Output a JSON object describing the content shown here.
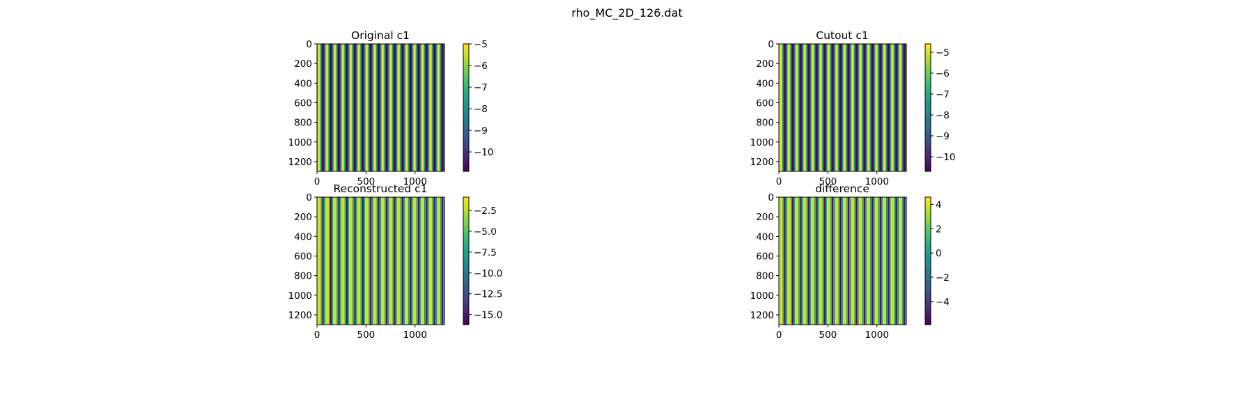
{
  "figure": {
    "suptitle": "rho_MC_2D_126.dat"
  },
  "colormap": [
    "#440154",
    "#482475",
    "#414487",
    "#355f8d",
    "#2a788e",
    "#21918c",
    "#22a884",
    "#44bf70",
    "#7ad151",
    "#bddf26",
    "#fde725"
  ],
  "chart_data": [
    {
      "type": "heatmap",
      "title": "Original c1",
      "xlabel": "",
      "ylabel": "",
      "pattern": "vertical-stripes",
      "stripe_cycles": 16,
      "waveform": "sinusoid",
      "xlim": [
        0,
        1300
      ],
      "ylim": [
        1300,
        0
      ],
      "xticks": [
        0,
        500,
        1000
      ],
      "yticks": [
        0,
        200,
        400,
        600,
        800,
        1000,
        1200
      ],
      "colorbar": {
        "min": -10.9,
        "max": -5.0,
        "ticks": [
          -5,
          -6,
          -7,
          -8,
          -9,
          -10
        ],
        "tick_labels": [
          "−5",
          "−6",
          "−7",
          "−8",
          "−9",
          "−10"
        ]
      }
    },
    {
      "type": "heatmap",
      "title": "Cutout c1",
      "xlabel": "",
      "ylabel": "",
      "pattern": "vertical-stripes",
      "stripe_cycles": 16,
      "waveform": "sinusoid",
      "left_edge_strip": true,
      "xlim": [
        0,
        1300
      ],
      "ylim": [
        1300,
        0
      ],
      "xticks": [
        0,
        500,
        1000
      ],
      "yticks": [
        0,
        200,
        400,
        600,
        800,
        1000,
        1200
      ],
      "colorbar": {
        "min": -10.7,
        "max": -4.6,
        "ticks": [
          -5,
          -6,
          -7,
          -8,
          -9,
          -10
        ],
        "tick_labels": [
          "−5",
          "−6",
          "−7",
          "−8",
          "−9",
          "−10"
        ]
      }
    },
    {
      "type": "heatmap",
      "title": "Reconstructed c1",
      "xlabel": "",
      "ylabel": "",
      "pattern": "vertical-stripes",
      "stripe_cycles": 16,
      "waveform": "square",
      "xlim": [
        0,
        1300
      ],
      "ylim": [
        1300,
        0
      ],
      "xticks": [
        0,
        500,
        1000
      ],
      "yticks": [
        0,
        200,
        400,
        600,
        800,
        1000,
        1200
      ],
      "colorbar": {
        "min": -16.2,
        "max": -0.9,
        "ticks": [
          -2.5,
          -5.0,
          -7.5,
          -10.0,
          -12.5,
          -15.0
        ],
        "tick_labels": [
          "−2.5",
          "−5.0",
          "−7.5",
          "−10.0",
          "−12.5",
          "−15.0"
        ]
      }
    },
    {
      "type": "heatmap",
      "title": "difference",
      "xlabel": "",
      "ylabel": "",
      "pattern": "vertical-stripes",
      "stripe_cycles": 16,
      "waveform": "square",
      "xlim": [
        0,
        1300
      ],
      "ylim": [
        1300,
        0
      ],
      "xticks": [
        0,
        500,
        1000
      ],
      "yticks": [
        0,
        200,
        400,
        600,
        800,
        1000,
        1200
      ],
      "colorbar": {
        "min": -5.9,
        "max": 4.6,
        "ticks": [
          4,
          2,
          0,
          -2,
          -4
        ],
        "tick_labels": [
          "4",
          "2",
          "0",
          "−2",
          "−4"
        ]
      }
    }
  ]
}
